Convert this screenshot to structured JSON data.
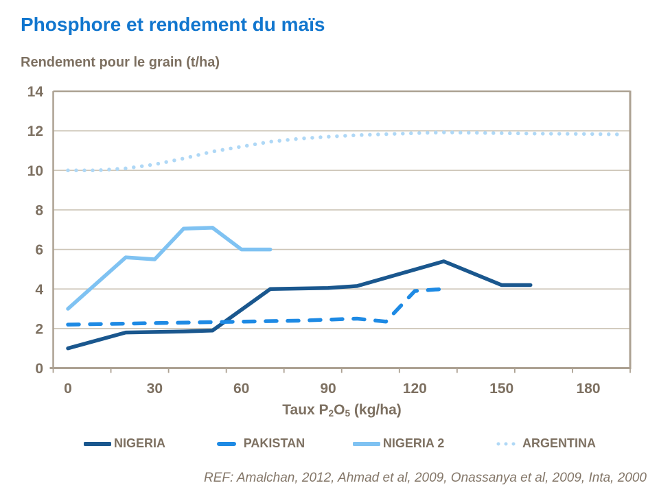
{
  "page": {
    "title": "Phosphore et rendement du maïs",
    "subtitle_y_axis": "Rendement pour le grain (t/ha)",
    "footer": "REF: Amalchan, 2012, Ahmad et al, 2009, Onassanya et al, 2009, Inta, 2000"
  },
  "x_axis_title_parts": {
    "pre": "Taux P",
    "sub1": "2",
    "mid": "O",
    "sub2": "5",
    "post": " (kg/ha)"
  },
  "colors": {
    "title_blue": "#1176CE",
    "text_brown": "#7D7061",
    "footer_brown": "#837668",
    "grid": "#CDC5B7",
    "axis": "#ACA192"
  },
  "chart_data": {
    "type": "line",
    "title": "Phosphore et rendement du maïs",
    "xlabel": "Taux P2O5 (kg/ha)",
    "ylabel": "Rendement pour le grain (t/ha)",
    "xlim": [
      0,
      195
    ],
    "ylim": [
      0,
      14
    ],
    "x_ticks": [
      0,
      30,
      60,
      90,
      120,
      150,
      180
    ],
    "y_ticks": [
      0,
      2,
      4,
      6,
      8,
      10,
      12,
      14
    ],
    "grid": true,
    "legend_position": "bottom",
    "series": [
      {
        "name": "NIGERIA",
        "style": "solid",
        "color": "#1A578E",
        "points": [
          [
            0,
            1.0
          ],
          [
            20,
            1.8
          ],
          [
            40,
            1.85
          ],
          [
            50,
            1.9
          ],
          [
            70,
            4.0
          ],
          [
            90,
            4.05
          ],
          [
            100,
            4.15
          ],
          [
            130,
            5.4
          ],
          [
            150,
            4.2
          ],
          [
            160,
            4.2
          ]
        ]
      },
      {
        "name": "PAKISTAN",
        "style": "dashed",
        "color": "#1E8AE4",
        "points": [
          [
            0,
            2.2
          ],
          [
            20,
            2.25
          ],
          [
            40,
            2.3
          ],
          [
            60,
            2.35
          ],
          [
            80,
            2.4
          ],
          [
            100,
            2.5
          ],
          [
            110,
            2.35
          ],
          [
            120,
            3.9
          ],
          [
            130,
            4.0
          ]
        ]
      },
      {
        "name": "NIGERIA 2",
        "style": "solid",
        "color": "#7FC2F2",
        "points": [
          [
            0,
            3.0
          ],
          [
            20,
            5.6
          ],
          [
            30,
            5.5
          ],
          [
            40,
            7.05
          ],
          [
            50,
            7.1
          ],
          [
            60,
            6.0
          ],
          [
            70,
            6.0
          ]
        ]
      },
      {
        "name": "ARGENTINA",
        "style": "dotted",
        "color": "#AFD8F6",
        "points": [
          [
            0,
            10.0
          ],
          [
            10,
            10.0
          ],
          [
            20,
            10.1
          ],
          [
            30,
            10.3
          ],
          [
            40,
            10.6
          ],
          [
            50,
            10.95
          ],
          [
            60,
            11.2
          ],
          [
            70,
            11.45
          ],
          [
            80,
            11.6
          ],
          [
            90,
            11.7
          ],
          [
            100,
            11.78
          ],
          [
            110,
            11.83
          ],
          [
            120,
            11.88
          ],
          [
            130,
            11.92
          ],
          [
            140,
            11.9
          ],
          [
            150,
            11.88
          ],
          [
            160,
            11.86
          ],
          [
            170,
            11.85
          ],
          [
            180,
            11.84
          ],
          [
            190,
            11.82
          ]
        ]
      }
    ]
  }
}
